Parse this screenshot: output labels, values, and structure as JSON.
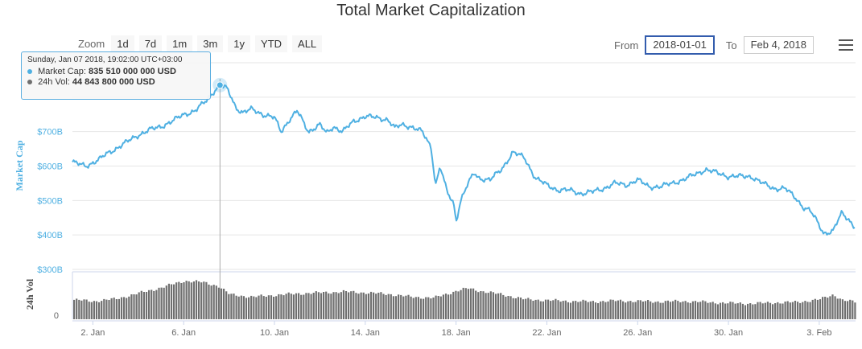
{
  "title": "Total Market Capitalization",
  "zoom": {
    "label": "Zoom",
    "buttons": [
      "1d",
      "7d",
      "1m",
      "3m",
      "1y",
      "YTD",
      "ALL"
    ]
  },
  "range": {
    "from_label": "From",
    "from_value": "2018-01-01",
    "to_label": "To",
    "to_value": "Feb 4, 2018"
  },
  "menu_icon": "hamburger-menu-icon",
  "tooltip": {
    "date": "Sunday, Jan 07 2018, 19:02:00 UTC+03:00",
    "cap_label": "Market Cap:",
    "cap_value": "835 510 000 000 USD",
    "vol_label": "24h Vol:",
    "vol_value": "44 843 800 000 USD"
  },
  "colors": {
    "market_cap": "#4fb0e2",
    "volume": "#6f6f6f",
    "grid": "#e6e6e6"
  },
  "chart_data": {
    "type": "line",
    "title": "Total Market Capitalization",
    "ylabel": "Market Cap",
    "ylabel_volume": "24h Vol",
    "y_ticks": [
      "$300B",
      "$400B",
      "$500B",
      "$600B",
      "$700B"
    ],
    "y_tick_values": [
      300,
      400,
      500,
      600,
      700
    ],
    "ylim": [
      300,
      900
    ],
    "volume_y_ticks": [
      "0"
    ],
    "x_ticks": [
      "2. Jan",
      "6. Jan",
      "10. Jan",
      "14. Jan",
      "18. Jan",
      "22. Jan",
      "26. Jan",
      "30. Jan",
      "3. Feb"
    ],
    "x_tick_days": [
      1,
      5,
      9,
      13,
      17,
      21,
      25,
      29,
      33
    ],
    "xlim_days": [
      0.1,
      34.6
    ],
    "highlight_day": 6.6,
    "series": [
      {
        "name": "Market Cap",
        "unit": "billion USD",
        "x_days": [
          0.1,
          0.4,
          0.7,
          1.0,
          1.3,
          1.6,
          2.0,
          2.5,
          3.0,
          3.5,
          4.0,
          4.5,
          5.0,
          5.5,
          6.0,
          6.3,
          6.6,
          6.9,
          7.1,
          7.3,
          7.6,
          8.0,
          8.5,
          9.0,
          9.3,
          9.6,
          10.0,
          10.5,
          11.0,
          11.3,
          11.6,
          12.0,
          12.5,
          13.0,
          13.5,
          14.0,
          14.3,
          14.6,
          15.0,
          15.5,
          15.9,
          16.1,
          16.3,
          16.6,
          16.9,
          17.0,
          17.2,
          17.5,
          17.8,
          18.0,
          18.5,
          19.0,
          19.5,
          20.0,
          20.5,
          21.0,
          21.5,
          22.0,
          22.5,
          23.0,
          23.5,
          24.0,
          24.5,
          25.0,
          25.5,
          26.0,
          26.5,
          27.0,
          27.5,
          28.0,
          28.5,
          29.0,
          29.5,
          30.0,
          30.5,
          31.0,
          31.5,
          32.0,
          32.3,
          32.6,
          32.9,
          33.2,
          33.6,
          34.0,
          34.3,
          34.6
        ],
        "values": [
          612,
          605,
          600,
          610,
          620,
          635,
          650,
          670,
          690,
          705,
          715,
          730,
          750,
          760,
          790,
          815,
          835,
          825,
          800,
          770,
          755,
          765,
          750,
          740,
          700,
          730,
          760,
          700,
          720,
          695,
          715,
          700,
          730,
          745,
          740,
          735,
          710,
          720,
          715,
          700,
          655,
          545,
          600,
          525,
          490,
          440,
          500,
          545,
          580,
          565,
          560,
          590,
          640,
          625,
          565,
          545,
          530,
          530,
          520,
          525,
          535,
          550,
          545,
          560,
          540,
          540,
          550,
          560,
          575,
          590,
          580,
          570,
          570,
          570,
          550,
          535,
          535,
          505,
          480,
          470,
          440,
          405,
          410,
          465,
          445,
          420
        ],
        "style": "line"
      },
      {
        "name": "24h Vol",
        "unit": "billion USD",
        "x_days": [
          0.1,
          1.0,
          2.0,
          3.0,
          4.0,
          5.0,
          5.8,
          6.5,
          7.0,
          8.0,
          9.0,
          10.0,
          11.0,
          12.0,
          13.0,
          14.0,
          15.0,
          16.0,
          17.0,
          17.5,
          18.0,
          19.0,
          20.0,
          21.0,
          22.0,
          23.0,
          24.0,
          25.0,
          26.0,
          27.0,
          28.0,
          29.0,
          30.0,
          31.0,
          32.0,
          33.0,
          33.6,
          34.0,
          34.6
        ],
        "values": [
          41,
          38,
          43,
          55,
          67,
          81,
          78,
          70,
          52,
          47,
          51,
          54,
          56,
          58,
          56,
          53,
          47,
          45,
          60,
          65,
          60,
          52,
          42,
          40,
          38,
          37,
          39,
          38,
          37,
          38,
          36,
          34,
          33,
          35,
          36,
          42,
          52,
          40,
          36
        ],
        "style": "column"
      }
    ]
  }
}
